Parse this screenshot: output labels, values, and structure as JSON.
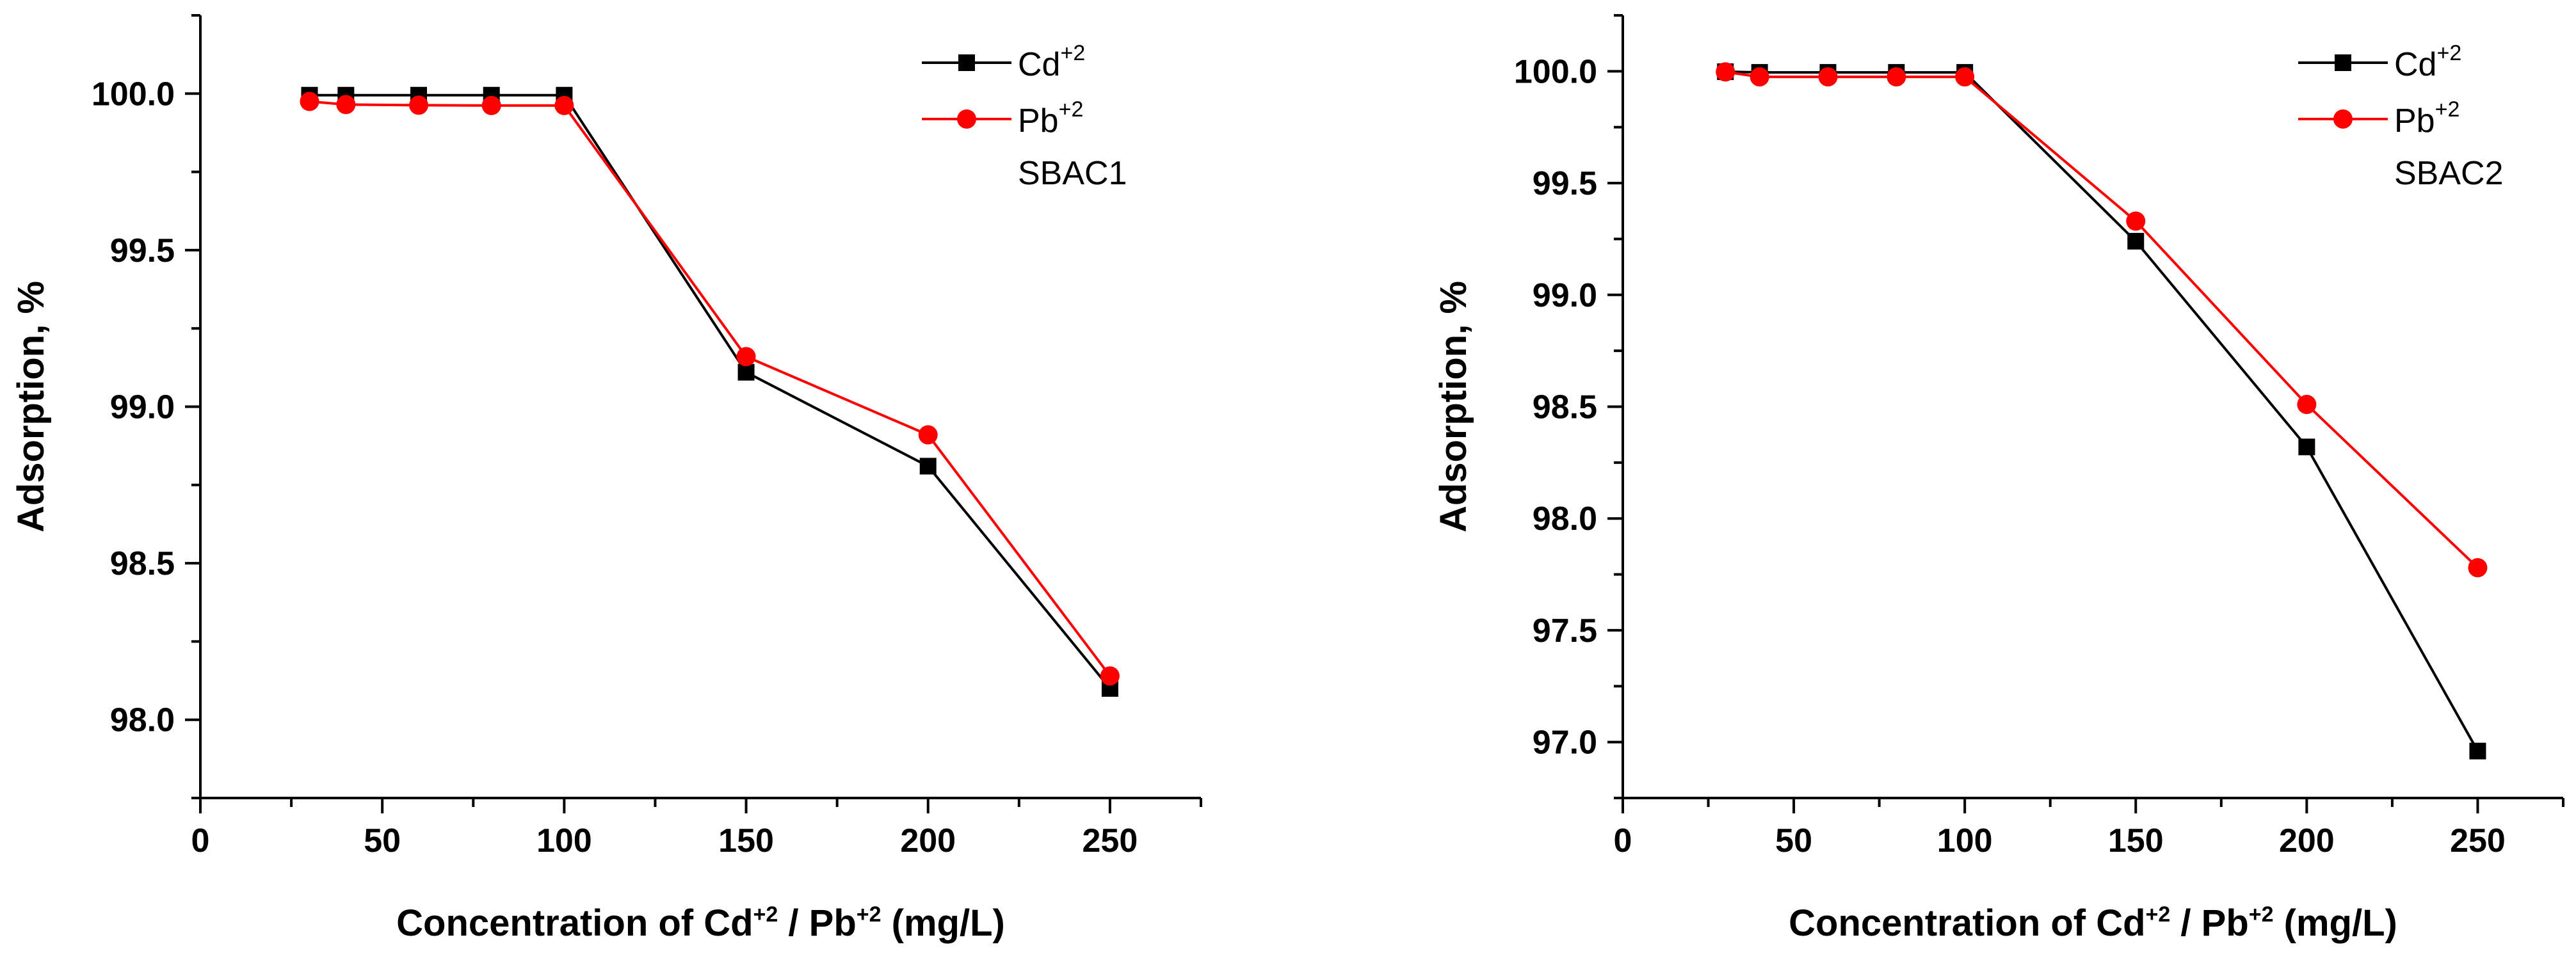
{
  "colors": {
    "cd": "#000000",
    "pb": "#ff0000",
    "axis": "#000000",
    "background": "#ffffff"
  },
  "chart_data": [
    {
      "type": "line",
      "id": "left",
      "sample_label": "SBAC1",
      "xlabel": {
        "prefix": "Concentration of Cd",
        "sup1": "+2",
        "mid": " / Pb",
        "sup2": "+2",
        "suffix": " (mg/L)"
      },
      "ylabel": "Adsorption, %",
      "xlim": [
        0,
        275
      ],
      "ylim": [
        97.75,
        100.25
      ],
      "xticks": [
        0,
        50,
        100,
        150,
        200,
        250
      ],
      "xtick_labels": [
        "0",
        "50",
        "100",
        "150",
        "200",
        "250"
      ],
      "yticks": [
        98.0,
        98.5,
        99.0,
        99.5,
        100.0
      ],
      "ytick_labels": [
        "98.0",
        "98.5",
        "99.0",
        "99.5",
        "100.0"
      ],
      "x": [
        30,
        40,
        60,
        80,
        100,
        150,
        200,
        250
      ],
      "series": [
        {
          "name": "Cd",
          "sup": "+2",
          "marker": "square",
          "color": "#000000",
          "values": [
            99.995,
            99.995,
            99.995,
            99.995,
            99.995,
            99.11,
            98.81,
            98.1
          ]
        },
        {
          "name": "Pb",
          "sup": "+2",
          "marker": "circle",
          "color": "#ff0000",
          "values": [
            99.975,
            99.965,
            99.963,
            99.962,
            99.962,
            99.16,
            98.91,
            98.14
          ]
        }
      ],
      "legend_position": "top-right"
    },
    {
      "type": "line",
      "id": "right",
      "sample_label": "SBAC2",
      "xlabel": {
        "prefix": "Concentration of Cd",
        "sup1": "+2",
        "mid": " / Pb",
        "sup2": "+2",
        "suffix": " (mg/L)"
      },
      "ylabel": "Adsorption, %",
      "xlim": [
        0,
        275
      ],
      "ylim": [
        96.75,
        100.25
      ],
      "xticks": [
        0,
        50,
        100,
        150,
        200,
        250
      ],
      "xtick_labels": [
        "0",
        "50",
        "100",
        "150",
        "200",
        "250"
      ],
      "yticks": [
        97.0,
        97.5,
        98.0,
        98.5,
        99.0,
        99.5,
        100.0
      ],
      "ytick_labels": [
        "97.0",
        "97.5",
        "98.0",
        "98.5",
        "99.0",
        "99.5",
        "100.0"
      ],
      "x": [
        30,
        40,
        60,
        80,
        100,
        150,
        200,
        250
      ],
      "series": [
        {
          "name": "Cd",
          "sup": "+2",
          "marker": "square",
          "color": "#000000",
          "values": [
            99.998,
            99.995,
            99.995,
            99.995,
            99.995,
            99.24,
            98.32,
            96.96
          ]
        },
        {
          "name": "Pb",
          "sup": "+2",
          "marker": "circle",
          "color": "#ff0000",
          "values": [
            99.997,
            99.975,
            99.975,
            99.975,
            99.975,
            99.33,
            98.51,
            97.78
          ]
        }
      ],
      "legend_position": "top-right"
    }
  ]
}
